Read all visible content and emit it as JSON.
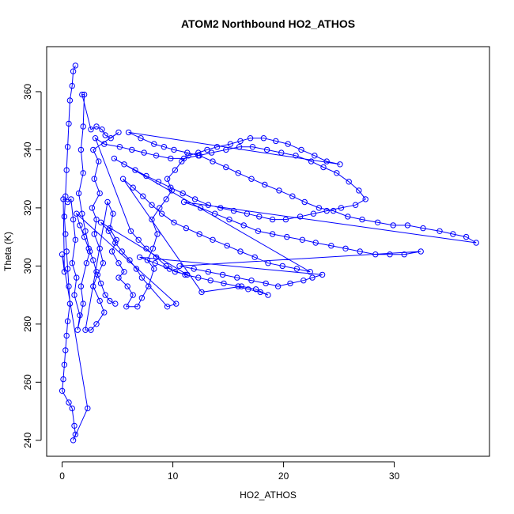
{
  "chart_data": {
    "type": "line",
    "title": "ATOM2 Northbound HO2_ATHOS",
    "xlabel": "HO2_ATHOS",
    "ylabel": "Theta (K)",
    "xlim": [
      -1.4,
      38.6
    ],
    "ylim": [
      234.5,
      375.5
    ],
    "xticks": [
      0,
      10,
      20,
      30
    ],
    "yticks": [
      240,
      260,
      280,
      300,
      320,
      340,
      360
    ],
    "grid": false,
    "legend": "none",
    "series": [
      {
        "color": "#0000ff",
        "marker": "open-circle",
        "points": [
          [
            1.2,
            369
          ],
          [
            1.0,
            367
          ],
          [
            0.9,
            362
          ],
          [
            0.7,
            357
          ],
          [
            0.6,
            349
          ],
          [
            0.5,
            341
          ],
          [
            0.4,
            333
          ],
          [
            0.3,
            324
          ],
          [
            0.2,
            317
          ],
          [
            0.3,
            311
          ],
          [
            0.4,
            305
          ],
          [
            0.5,
            299
          ],
          [
            0.6,
            293
          ],
          [
            0.7,
            287
          ],
          [
            0.5,
            281
          ],
          [
            0.4,
            276
          ],
          [
            0.3,
            271
          ],
          [
            0.2,
            266
          ],
          [
            0.1,
            261
          ],
          [
            0.0,
            257
          ],
          [
            0.6,
            253
          ],
          [
            0.9,
            251
          ],
          [
            1.1,
            245
          ],
          [
            1.2,
            242
          ],
          [
            1.0,
            240
          ],
          [
            2.3,
            251
          ],
          [
            0.0,
            304
          ],
          [
            0.2,
            298
          ],
          [
            0.1,
            323
          ],
          [
            0.5,
            322
          ],
          [
            0.8,
            323
          ],
          [
            1.0,
            316
          ],
          [
            1.2,
            309
          ],
          [
            0.9,
            301
          ],
          [
            1.3,
            296
          ],
          [
            1.1,
            290
          ],
          [
            1.6,
            283
          ],
          [
            1.4,
            278
          ],
          [
            1.9,
            287
          ],
          [
            1.7,
            293
          ],
          [
            2.2,
            301
          ],
          [
            2.5,
            305
          ],
          [
            2.1,
            312
          ],
          [
            1.8,
            318
          ],
          [
            1.5,
            325
          ],
          [
            1.9,
            332
          ],
          [
            1.7,
            340
          ],
          [
            1.9,
            348
          ],
          [
            2.0,
            359
          ],
          [
            1.8,
            359
          ],
          [
            2.6,
            347
          ],
          [
            3.1,
            348
          ],
          [
            3.6,
            347
          ],
          [
            3.9,
            345
          ],
          [
            4.4,
            344
          ],
          [
            5.1,
            346
          ],
          [
            2.8,
            340
          ],
          [
            3.3,
            336
          ],
          [
            2.9,
            330
          ],
          [
            3.4,
            325
          ],
          [
            2.7,
            320
          ],
          [
            3.1,
            316
          ],
          [
            2.9,
            311
          ],
          [
            3.4,
            306
          ],
          [
            3.7,
            301
          ],
          [
            3.2,
            297
          ],
          [
            2.8,
            293
          ],
          [
            3.4,
            288
          ],
          [
            3.8,
            284
          ],
          [
            3.1,
            280
          ],
          [
            2.6,
            278
          ],
          [
            2.1,
            278
          ],
          [
            4.1,
            322
          ],
          [
            4.6,
            318
          ],
          [
            4.3,
            313
          ],
          [
            4.9,
            309
          ],
          [
            4.5,
            305
          ],
          [
            5.1,
            301
          ],
          [
            5.6,
            298
          ],
          [
            5.1,
            296
          ],
          [
            5.9,
            293
          ],
          [
            6.4,
            290
          ],
          [
            5.8,
            286
          ],
          [
            6.8,
            286
          ],
          [
            7.2,
            289
          ],
          [
            7.8,
            293
          ],
          [
            8.3,
            299
          ],
          [
            7.7,
            302
          ],
          [
            8.2,
            306
          ],
          [
            8.6,
            311
          ],
          [
            8.1,
            316
          ],
          [
            8.8,
            320
          ],
          [
            9.4,
            323
          ],
          [
            9.9,
            326
          ],
          [
            9.5,
            330
          ],
          [
            10.2,
            333
          ],
          [
            10.8,
            336
          ],
          [
            11.4,
            338
          ],
          [
            12.3,
            339
          ],
          [
            13.1,
            340
          ],
          [
            14.0,
            341
          ],
          [
            15.2,
            342
          ],
          [
            16.1,
            343
          ],
          [
            17.0,
            344
          ],
          [
            18.2,
            344
          ],
          [
            19.3,
            343
          ],
          [
            20.4,
            342
          ],
          [
            21.6,
            340
          ],
          [
            22.8,
            338
          ],
          [
            23.9,
            336
          ],
          [
            25.1,
            335
          ],
          [
            6.0,
            346
          ],
          [
            7.1,
            344
          ],
          [
            8.3,
            342
          ],
          [
            9.2,
            341
          ],
          [
            10.1,
            340
          ],
          [
            11.3,
            339
          ],
          [
            12.4,
            338
          ],
          [
            13.6,
            336
          ],
          [
            14.8,
            334
          ],
          [
            15.9,
            332
          ],
          [
            17.1,
            330
          ],
          [
            18.3,
            328
          ],
          [
            19.6,
            326
          ],
          [
            20.8,
            324
          ],
          [
            21.9,
            322
          ],
          [
            23.2,
            320
          ],
          [
            24.5,
            319
          ],
          [
            25.8,
            317
          ],
          [
            27.1,
            316
          ],
          [
            28.5,
            315
          ],
          [
            29.9,
            314
          ],
          [
            31.2,
            314
          ],
          [
            32.6,
            313
          ],
          [
            34.1,
            312
          ],
          [
            35.3,
            311
          ],
          [
            36.5,
            310
          ],
          [
            37.4,
            308
          ],
          [
            11.0,
            322
          ],
          [
            12.5,
            320
          ],
          [
            13.8,
            318
          ],
          [
            15.1,
            316
          ],
          [
            16.4,
            314
          ],
          [
            17.7,
            312
          ],
          [
            19.0,
            311
          ],
          [
            20.3,
            310
          ],
          [
            21.7,
            309
          ],
          [
            22.9,
            308
          ],
          [
            24.3,
            307
          ],
          [
            25.6,
            306
          ],
          [
            26.9,
            305
          ],
          [
            28.3,
            304
          ],
          [
            29.6,
            304
          ],
          [
            30.9,
            304
          ],
          [
            32.4,
            305
          ],
          [
            10.6,
            300
          ],
          [
            11.9,
            299
          ],
          [
            13.2,
            298
          ],
          [
            14.5,
            297
          ],
          [
            15.8,
            296
          ],
          [
            17.1,
            295
          ],
          [
            18.4,
            294
          ],
          [
            19.5,
            293
          ],
          [
            20.6,
            294
          ],
          [
            21.8,
            295
          ],
          [
            22.6,
            296
          ],
          [
            23.5,
            297
          ],
          [
            7.0,
            303
          ],
          [
            8.4,
            301
          ],
          [
            9.7,
            299
          ],
          [
            11.1,
            297
          ],
          [
            12.3,
            296
          ],
          [
            13.4,
            295
          ],
          [
            14.6,
            294
          ],
          [
            15.9,
            293
          ],
          [
            16.8,
            292
          ],
          [
            17.9,
            291
          ],
          [
            18.6,
            290
          ],
          [
            17.5,
            292
          ],
          [
            16.2,
            293
          ],
          [
            12.6,
            291
          ],
          [
            5.5,
            330
          ],
          [
            6.4,
            327
          ],
          [
            7.3,
            324
          ],
          [
            8.1,
            321
          ],
          [
            9.0,
            318
          ],
          [
            10.1,
            315
          ],
          [
            11.2,
            313
          ],
          [
            12.4,
            311
          ],
          [
            13.6,
            309
          ],
          [
            14.9,
            307
          ],
          [
            16.1,
            305
          ],
          [
            17.4,
            303
          ],
          [
            18.6,
            301
          ],
          [
            19.9,
            300
          ],
          [
            21.2,
            299
          ],
          [
            22.4,
            298
          ],
          [
            4.7,
            337
          ],
          [
            5.6,
            335
          ],
          [
            6.6,
            333
          ],
          [
            7.6,
            331
          ],
          [
            8.7,
            329
          ],
          [
            9.8,
            327
          ],
          [
            10.9,
            325
          ],
          [
            12.0,
            323
          ],
          [
            13.2,
            321
          ],
          [
            14.3,
            320
          ],
          [
            15.5,
            319
          ],
          [
            16.7,
            318
          ],
          [
            17.8,
            317
          ],
          [
            19.0,
            316
          ],
          [
            20.2,
            316
          ],
          [
            21.5,
            317
          ],
          [
            22.7,
            318
          ],
          [
            23.9,
            319
          ],
          [
            25.2,
            320
          ],
          [
            26.5,
            321
          ],
          [
            27.4,
            323
          ],
          [
            26.8,
            326
          ],
          [
            25.9,
            329
          ],
          [
            24.8,
            332
          ],
          [
            23.6,
            334
          ],
          [
            22.5,
            336
          ],
          [
            21.1,
            338
          ],
          [
            19.8,
            339
          ],
          [
            18.5,
            340
          ],
          [
            17.2,
            341
          ],
          [
            16.0,
            341
          ],
          [
            14.8,
            340
          ],
          [
            13.5,
            339
          ],
          [
            12.3,
            338
          ],
          [
            11.0,
            337
          ],
          [
            9.8,
            337
          ],
          [
            8.5,
            338
          ],
          [
            7.4,
            339
          ],
          [
            6.3,
            340
          ],
          [
            5.2,
            341
          ],
          [
            3.8,
            342
          ],
          [
            3.0,
            344
          ],
          [
            6.2,
            312
          ],
          [
            6.9,
            309
          ],
          [
            7.6,
            306
          ],
          [
            8.5,
            303
          ],
          [
            9.4,
            300
          ],
          [
            10.2,
            298
          ],
          [
            11.3,
            297
          ],
          [
            3.5,
            315
          ],
          [
            4.2,
            312
          ],
          [
            4.8,
            308
          ],
          [
            5.4,
            305
          ],
          [
            6.1,
            302
          ],
          [
            6.7,
            299
          ],
          [
            7.2,
            296
          ],
          [
            9.5,
            286
          ],
          [
            10.3,
            287
          ],
          [
            1.3,
            318
          ],
          [
            1.6,
            314
          ],
          [
            2.0,
            310
          ],
          [
            2.4,
            306
          ],
          [
            2.8,
            302
          ],
          [
            3.1,
            298
          ],
          [
            3.5,
            294
          ],
          [
            3.9,
            290
          ],
          [
            4.3,
            288
          ],
          [
            4.8,
            287
          ]
        ]
      }
    ]
  }
}
